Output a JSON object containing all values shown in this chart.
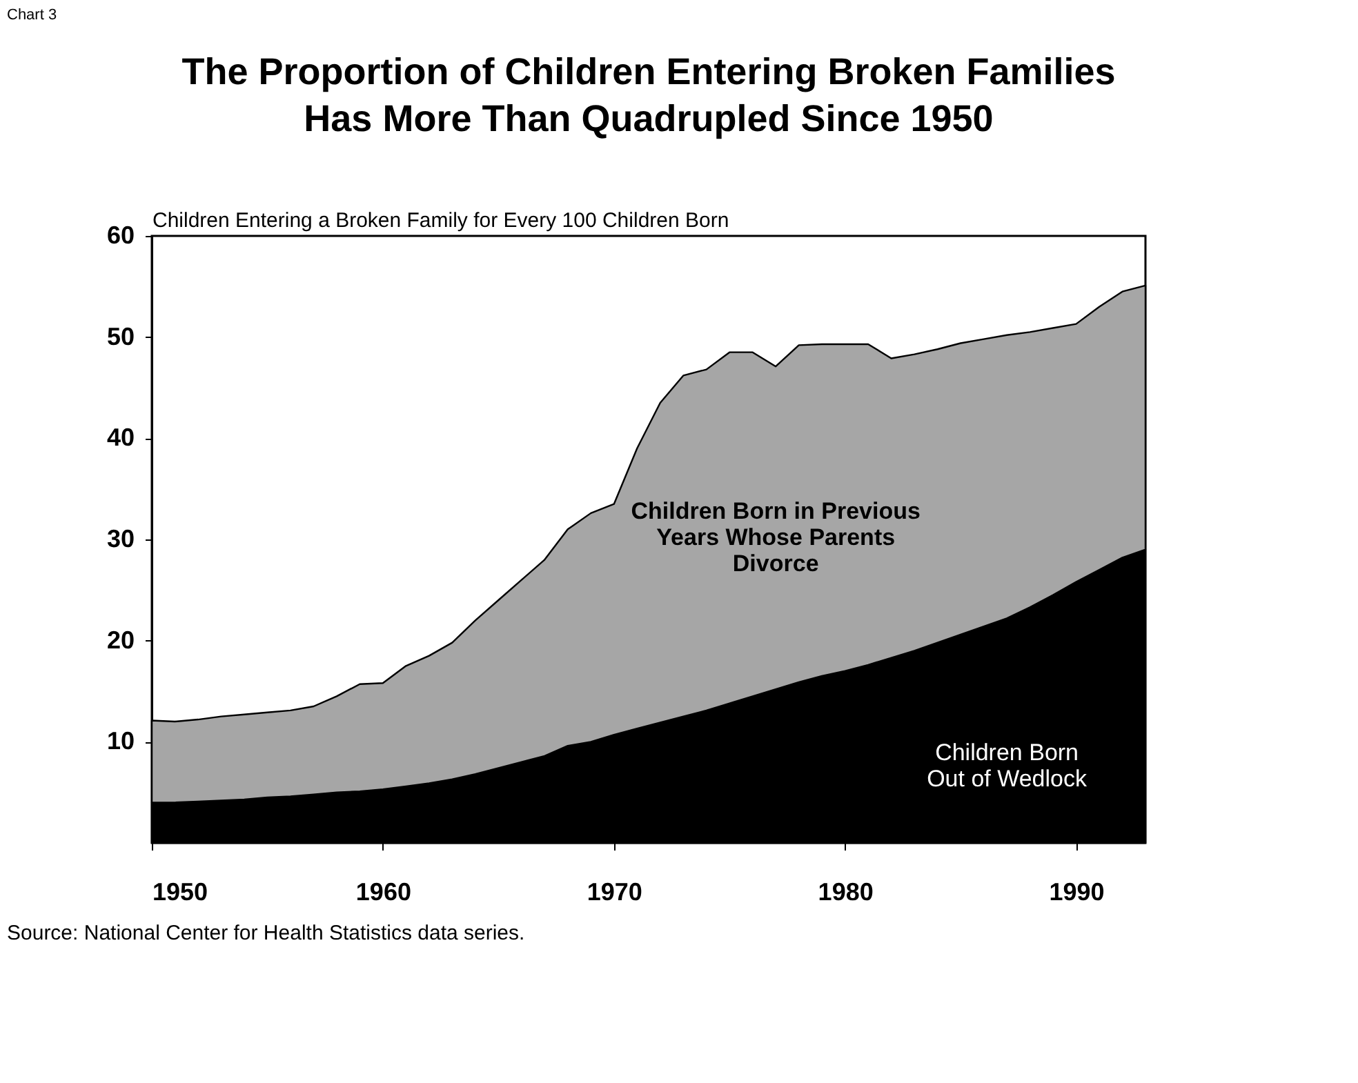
{
  "chart_data": {
    "type": "area",
    "stacked": true,
    "title": "The Proportion of Children Entering Broken Families\nHas More Than Quadrupled Since 1950",
    "ylabel": "Children Entering a Broken Family for Every 100 Children Born",
    "annotations": [
      "Chart 3",
      "Source: National Center for Health Statistics data series."
    ],
    "x": [
      1950,
      1951,
      1952,
      1953,
      1954,
      1955,
      1956,
      1957,
      1958,
      1959,
      1960,
      1961,
      1962,
      1963,
      1964,
      1965,
      1966,
      1967,
      1968,
      1969,
      1970,
      1971,
      1972,
      1973,
      1974,
      1975,
      1976,
      1977,
      1978,
      1979,
      1980,
      1981,
      1982,
      1983,
      1984,
      1985,
      1986,
      1987,
      1988,
      1989,
      1990,
      1991,
      1992,
      1993
    ],
    "series": [
      {
        "name": "Children Born Out of Wedlock",
        "color": "#000000",
        "values": [
          4.0,
          4.0,
          4.1,
          4.2,
          4.3,
          4.5,
          4.6,
          4.8,
          5.0,
          5.1,
          5.3,
          5.6,
          5.9,
          6.3,
          6.8,
          7.4,
          8.0,
          8.6,
          9.6,
          10.0,
          10.7,
          11.3,
          11.9,
          12.5,
          13.1,
          13.8,
          14.5,
          15.2,
          15.9,
          16.5,
          17.0,
          17.6,
          18.3,
          19.0,
          19.8,
          20.6,
          21.4,
          22.2,
          23.3,
          24.5,
          25.8,
          27.0,
          28.2,
          29.0
        ]
      },
      {
        "name": "Children Born in Previous Years Whose Parents Divorce",
        "color": "#a6a6a6",
        "values": [
          8.1,
          8.0,
          8.1,
          8.3,
          8.4,
          8.4,
          8.5,
          8.7,
          9.5,
          10.6,
          10.5,
          11.9,
          12.6,
          13.5,
          15.2,
          16.6,
          18.0,
          19.4,
          21.4,
          22.6,
          22.8,
          27.7,
          31.6,
          33.7,
          33.7,
          34.7,
          34.0,
          31.9,
          33.3,
          32.8,
          32.3,
          31.7,
          29.6,
          29.3,
          29.0,
          28.8,
          28.4,
          28.0,
          27.2,
          26.4,
          25.5,
          26.0,
          26.3,
          26.1
        ]
      }
    ],
    "xlim": [
      1950,
      1993
    ],
    "xticks": [
      1950,
      1960,
      1970,
      1980,
      1990
    ],
    "ylim": [
      0,
      60
    ],
    "yticks": [
      10,
      20,
      30,
      40,
      50,
      60
    ],
    "grid": false
  }
}
